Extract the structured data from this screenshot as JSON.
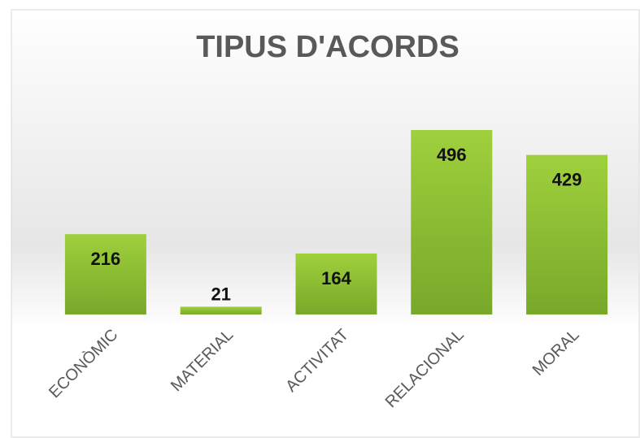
{
  "chart_data": {
    "type": "bar",
    "title": "TIPUS D'ACORDS",
    "categories": [
      "ECONÒMIC",
      "MATERIAL",
      "ACTIVITAT",
      "RELACIONAL",
      "MORAL"
    ],
    "values": [
      216,
      21,
      164,
      496,
      429
    ],
    "color": "#8dc034"
  }
}
